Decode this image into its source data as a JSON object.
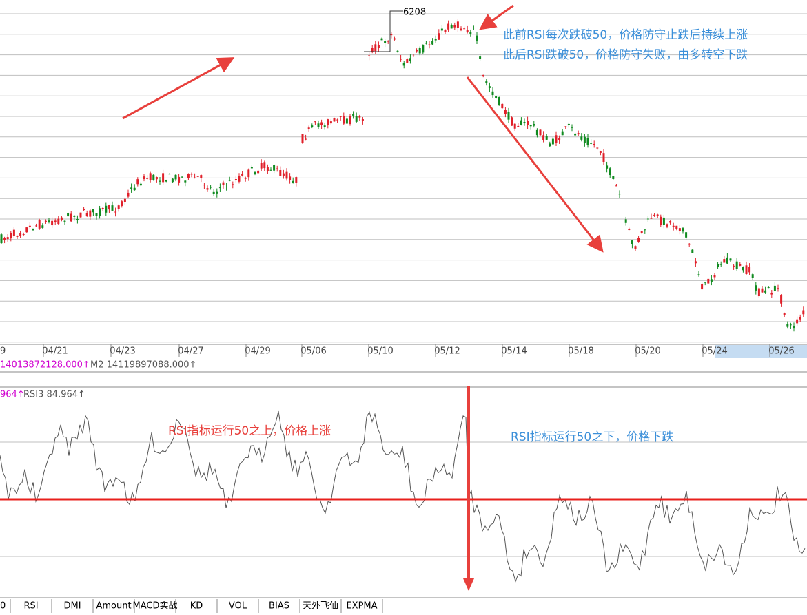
{
  "price_panel": {
    "high_label": "6208",
    "annotations": [
      "此前RSI每次跌破50，价格防守止跌后持续上涨",
      "此后RSI跌破50，价格防守失败，由多转空下跌"
    ]
  },
  "date_axis": [
    "9",
    "04/21",
    "04/23",
    "04/27",
    "04/29",
    "05/06",
    "05/10",
    "05/12",
    "05/14",
    "05/18",
    "05/20",
    "05/24",
    "05/26"
  ],
  "info_bar": [
    "14013872128.000↑",
    "M2 14119897088.000↑"
  ],
  "rsi_panel": {
    "labels": [
      "964↑",
      "RSI3 84.964↑"
    ],
    "annotations": [
      "RSI指标运行50之上，价格上涨",
      "RSI指标运行50之下，价格下跌"
    ]
  },
  "tabs": [
    "0",
    "RSI",
    "DMI",
    "Amount",
    "MACD实战",
    "KD",
    "VOL",
    "BIAS",
    "天外飞仙",
    "EXPMA"
  ]
}
